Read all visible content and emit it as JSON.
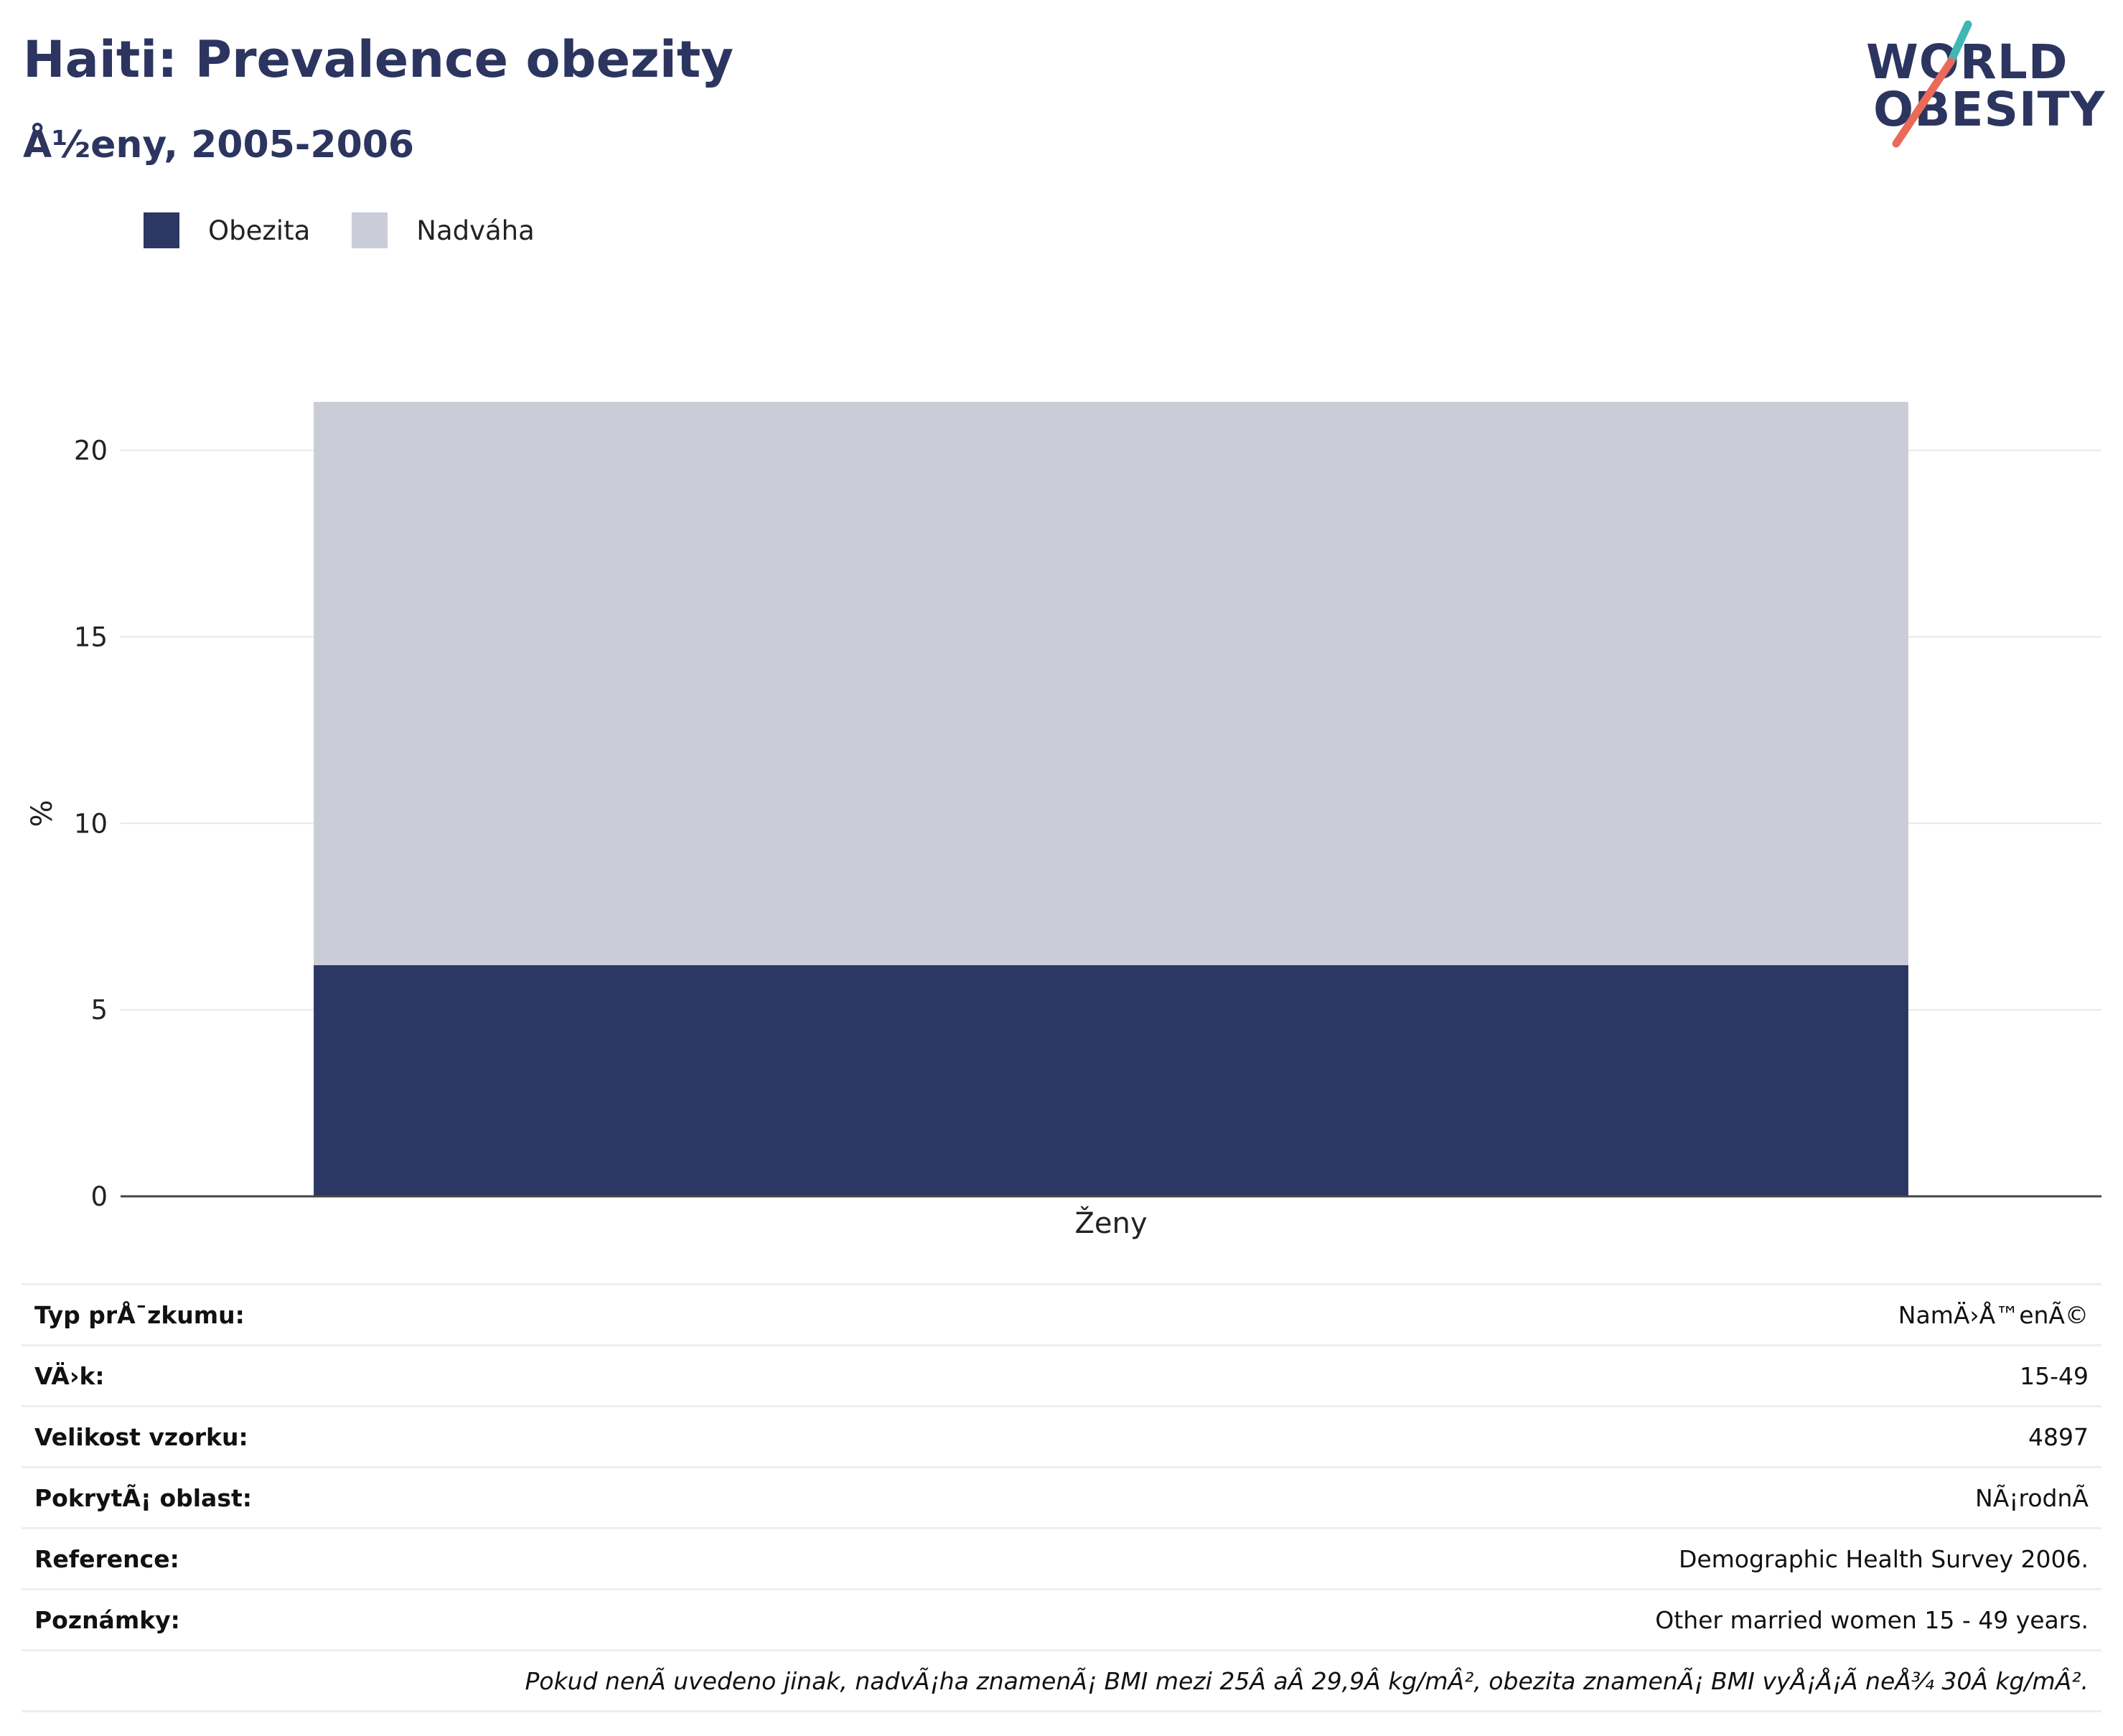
{
  "header": {
    "title": "Haiti: Prevalence obezity",
    "subtitle": "Å½eny, 2005-2006"
  },
  "logo": {
    "line1": "WORLD",
    "line2": "OBESITY",
    "accent_teal": "#3fb8b3",
    "accent_coral": "#ea6a5a"
  },
  "legend": [
    {
      "label": "Obezita",
      "color": "#2c3763"
    },
    {
      "label": "Nadváha",
      "color": "#cacdd8"
    }
  ],
  "chart_data": {
    "type": "bar",
    "stacked": true,
    "categories": [
      "Ženy"
    ],
    "series": [
      {
        "name": "Obezita",
        "values": [
          6.2
        ],
        "color": "#2c3763"
      },
      {
        "name": "Nadváha",
        "values": [
          15.1
        ],
        "color": "#cacdd8"
      }
    ],
    "xlabel": "",
    "ylabel": "%",
    "ylim": [
      0,
      21.3
    ],
    "yticks": [
      0,
      5,
      10,
      15,
      20
    ],
    "grid": true,
    "legend_position": "top-left"
  },
  "info": {
    "rows": [
      {
        "key": "Typ prÅ¯zkumu:",
        "value": "NamÄ›Å™enÃ©"
      },
      {
        "key": "VÄ›k:",
        "value": "15-49"
      },
      {
        "key": "Velikost vzorku:",
        "value": "4897"
      },
      {
        "key": "PokrytÃ¡ oblast:",
        "value": "NÃ¡rodnÃ"
      },
      {
        "key": "Reference:",
        "value": "Demographic Health Survey 2006."
      },
      {
        "key": "Poznámky:",
        "value": "Other married women 15 - 49 years."
      }
    ],
    "note": "Pokud nenÃ uvedeno jinak, nadvÃ¡ha znamenÃ¡ BMI mezi 25Â aÂ 29,9Â kg/mÂ², obezita znamenÃ¡ BMI vyÅ¡Å¡Ã neÅ¾ 30Â kg/mÂ²."
  }
}
